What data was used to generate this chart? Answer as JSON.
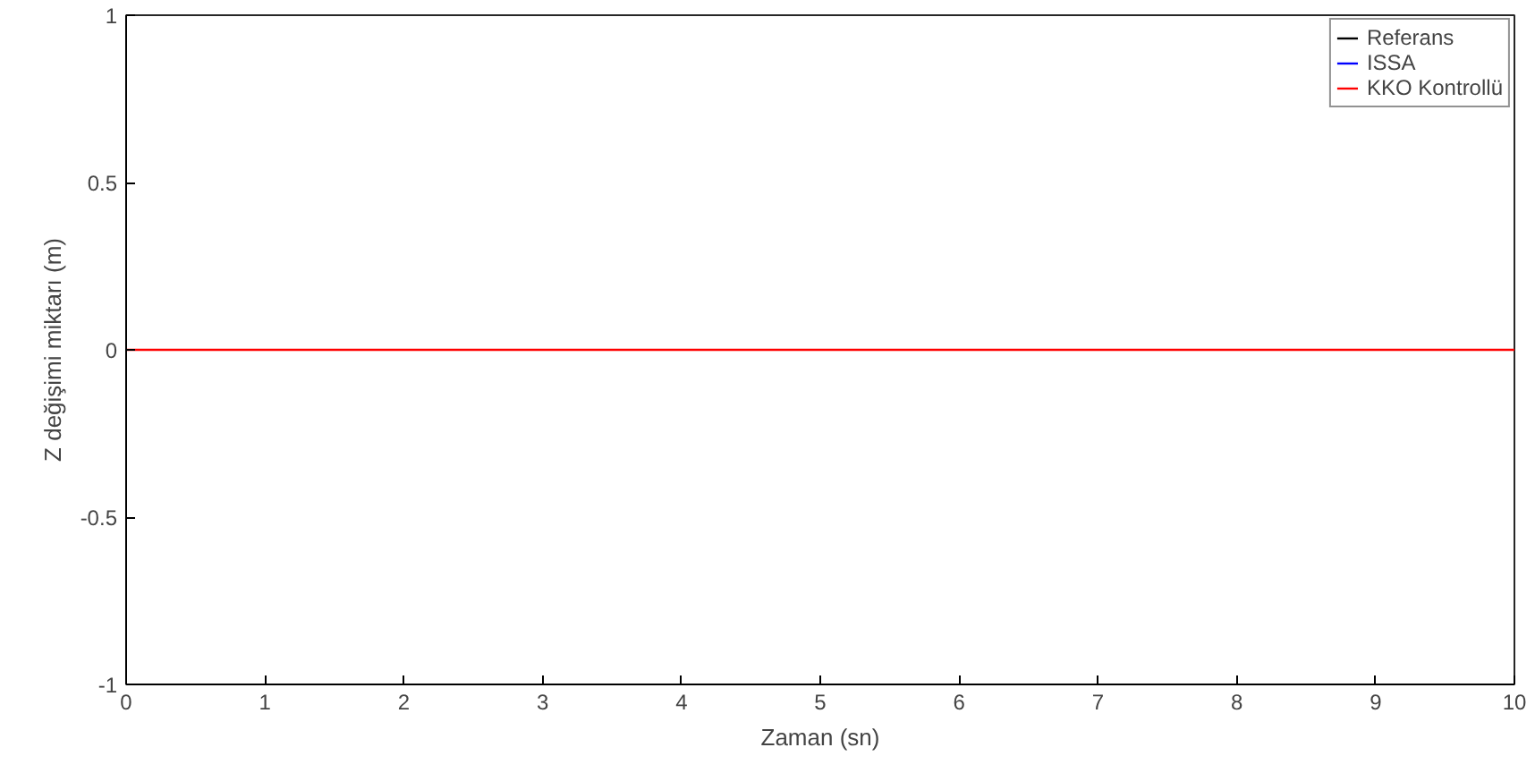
{
  "chart_data": {
    "type": "line",
    "xlabel": "Zaman (sn)",
    "ylabel": "Z değişimi miktarı (m)",
    "x": [
      0,
      10
    ],
    "series": [
      {
        "name": "Referans",
        "color": "#000000",
        "values": [
          null,
          null
        ]
      },
      {
        "name": "ISSA",
        "color": "#0000ff",
        "values": [
          null,
          null
        ]
      },
      {
        "name": "KKO Kontrollü",
        "color": "#ff0000",
        "values": [
          0,
          0
        ]
      }
    ],
    "xlim": [
      0,
      10
    ],
    "xticks": [
      0,
      1,
      2,
      3,
      4,
      5,
      6,
      7,
      8,
      9,
      10
    ],
    "ylim": [
      -1,
      1
    ],
    "yticks": [
      -1,
      -0.5,
      0,
      0.5,
      1
    ],
    "grid": false,
    "legend": "top right",
    "marker": "none",
    "line_style": "solid"
  }
}
